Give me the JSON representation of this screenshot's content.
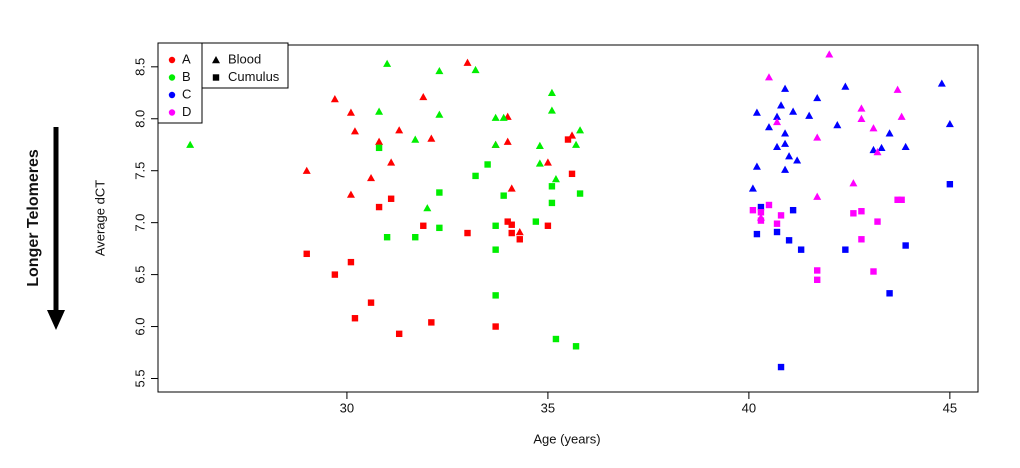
{
  "chart_data": {
    "type": "scatter",
    "side_label": "Longer Telomeres",
    "x_label": "Age (years)",
    "y_label": "Average dCT",
    "xlim": [
      25.3,
      45.7
    ],
    "ylim": [
      5.37,
      8.71
    ],
    "xticks": [
      30,
      35,
      40,
      45
    ],
    "yticks": [
      5.5,
      {
        "value": 6,
        "label": "6.0"
      },
      6.5,
      {
        "value": 7,
        "label": "7.0"
      },
      7.5,
      {
        "value": 8,
        "label": "8.0"
      },
      8.5
    ],
    "markers": [
      {
        "name": "Blood",
        "shape": "triangle"
      },
      {
        "name": "Cumulus",
        "shape": "square"
      }
    ],
    "series": [
      {
        "name": "A",
        "color": "#ff0000",
        "points": [
          {
            "x": [
              29.0,
              29.7,
              30.1,
              30.2,
              30.8,
              30.6,
              30.1,
              31.1,
              31.3,
              31.9,
              32.1,
              33.0,
              33.7,
              34.0,
              34.1,
              34.0,
              34.3,
              35.0,
              35.6
            ],
            "y": [
              7.5,
              8.19,
              8.06,
              7.88,
              7.78,
              7.43,
              7.27,
              7.58,
              7.89,
              8.21,
              7.81,
              8.54,
              7.75,
              8.02,
              7.33,
              7.78,
              6.91,
              7.58,
              7.84
            ]
          },
          {
            "x": [
              29.0,
              29.7,
              30.1,
              30.2,
              30.6,
              30.8,
              31.1,
              31.3,
              31.9,
              32.1,
              33.0,
              33.7,
              34.0,
              34.1,
              34.1,
              34.3,
              35.0,
              35.6,
              35.5
            ],
            "y": [
              6.7,
              6.5,
              6.62,
              6.08,
              6.23,
              7.15,
              7.23,
              5.93,
              6.97,
              6.04,
              6.9,
              6.0,
              7.01,
              6.9,
              6.98,
              6.84,
              6.97,
              7.47,
              7.8
            ]
          }
        ]
      },
      {
        "name": "B",
        "color": "#00ee00",
        "points": [
          {
            "x": [
              26.1,
              31.0,
              32.3,
              33.2,
              30.8,
              31.7,
              32.3,
              32.0,
              33.7,
              33.9,
              33.7,
              34.8,
              35.1,
              35.1,
              34.8,
              35.2,
              35.7,
              35.8
            ],
            "y": [
              7.75,
              8.53,
              8.46,
              8.47,
              8.07,
              7.8,
              8.04,
              7.14,
              8.01,
              8.01,
              7.75,
              7.74,
              8.25,
              8.08,
              7.57,
              7.42,
              7.75,
              7.89
            ]
          },
          {
            "x": [
              30.8,
              31.0,
              31.7,
              32.3,
              32.3,
              33.2,
              33.5,
              33.7,
              33.7,
              33.7,
              33.9,
              34.7,
              35.1,
              35.1,
              35.2,
              35.7,
              35.8
            ],
            "y": [
              7.72,
              6.86,
              6.86,
              6.95,
              7.29,
              7.45,
              7.56,
              6.97,
              6.74,
              6.3,
              7.26,
              7.01,
              7.35,
              7.19,
              5.88,
              5.81,
              7.28
            ]
          }
        ]
      },
      {
        "name": "C",
        "color": "#0000ff",
        "points": [
          {
            "x": [
              40.1,
              40.2,
              40.2,
              40.5,
              40.7,
              40.7,
              40.8,
              40.9,
              40.9,
              40.9,
              40.9,
              41.0,
              41.1,
              41.2,
              41.5,
              41.7,
              42.2,
              42.4,
              43.1,
              43.3,
              43.5,
              43.9,
              44.8,
              45.0
            ],
            "y": [
              7.33,
              8.06,
              7.54,
              7.92,
              8.02,
              7.73,
              8.13,
              7.86,
              8.29,
              7.76,
              7.51,
              7.64,
              8.07,
              7.6,
              8.03,
              8.2,
              7.94,
              8.31,
              7.7,
              7.72,
              7.86,
              7.73,
              8.34,
              7.95
            ]
          },
          {
            "x": [
              40.3,
              40.2,
              40.7,
              41.0,
              41.1,
              41.3,
              42.4,
              43.5,
              43.9,
              45.0,
              40.8
            ],
            "y": [
              7.15,
              6.89,
              6.91,
              6.83,
              7.12,
              6.74,
              6.74,
              6.32,
              6.78,
              7.37,
              5.61
            ]
          }
        ]
      },
      {
        "name": "D",
        "color": "#ff00ff",
        "points": [
          {
            "x": [
              40.5,
              42.0,
              42.8,
              42.8,
              43.1,
              43.2,
              43.7,
              43.8,
              42.6,
              41.7,
              40.7,
              41.7,
              40.3
            ],
            "y": [
              8.4,
              8.62,
              8.1,
              8.0,
              7.91,
              7.68,
              8.28,
              8.02,
              7.38,
              7.25,
              7.97,
              7.82,
              7.05
            ]
          },
          {
            "x": [
              40.1,
              40.3,
              40.3,
              40.5,
              40.7,
              40.8,
              41.7,
              41.7,
              42.6,
              42.8,
              42.8,
              43.2,
              43.1,
              43.7,
              43.8
            ],
            "y": [
              7.12,
              7.1,
              7.02,
              7.17,
              6.99,
              7.07,
              6.54,
              6.45,
              7.09,
              7.11,
              6.84,
              7.01,
              6.53,
              7.22,
              7.22
            ]
          }
        ]
      }
    ]
  }
}
